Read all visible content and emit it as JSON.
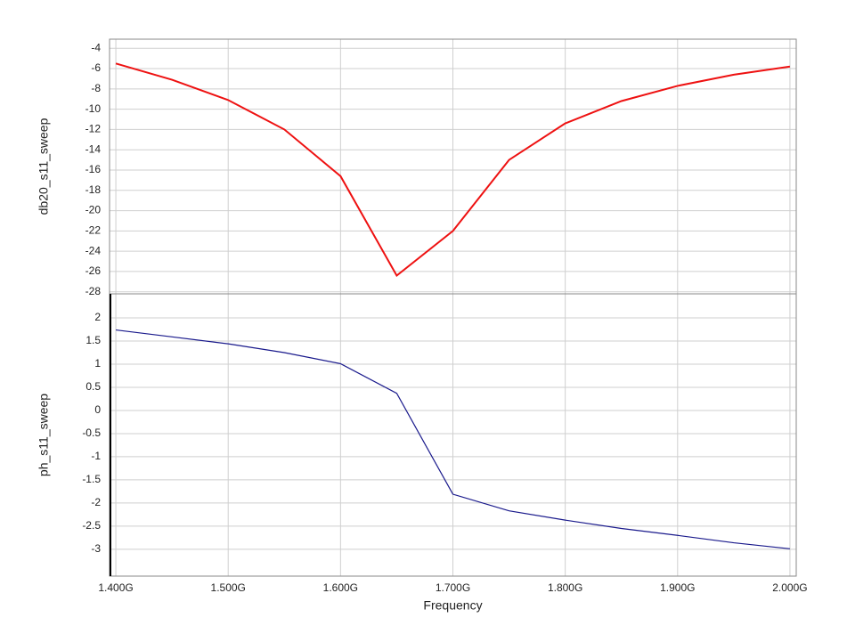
{
  "chart_data": [
    {
      "type": "line",
      "ylabel": "db20_s11_sweep",
      "x": [
        1400000000,
        1450000000,
        1500000000,
        1550000000,
        1600000000,
        1650000000,
        1700000000,
        1750000000,
        1800000000,
        1850000000,
        1900000000,
        1950000000,
        2000000000
      ],
      "series": [
        {
          "color": "#ee1111",
          "values": [
            -5.5,
            -7.1,
            -9.1,
            -12.0,
            -16.6,
            -26.4,
            -22.0,
            -15.0,
            -11.4,
            -9.2,
            -7.7,
            -6.6,
            -5.8
          ]
        }
      ],
      "xlim": [
        1394400000,
        2005600000
      ],
      "xticks": [
        1400000000,
        1500000000,
        1600000000,
        1700000000,
        1800000000,
        1900000000,
        2000000000
      ],
      "ylim": [
        -28.2,
        -3.1
      ],
      "yticks": [
        -4,
        -6,
        -8,
        -10,
        -12,
        -14,
        -16,
        -18,
        -20,
        -22,
        -24,
        -26,
        -28
      ],
      "grid": true
    },
    {
      "type": "line",
      "ylabel": "ph_s11_sweep",
      "xlabel": "Frequency",
      "x": [
        1400000000,
        1450000000,
        1500000000,
        1550000000,
        1600000000,
        1650000000,
        1700000000,
        1750000000,
        1800000000,
        1850000000,
        1900000000,
        1950000000,
        2000000000
      ],
      "series": [
        {
          "color": "#1a1a8c",
          "values": [
            1.74,
            1.59,
            1.44,
            1.25,
            1.01,
            0.37,
            -1.81,
            -2.17,
            -2.37,
            -2.55,
            -2.7,
            -2.86,
            -2.99
          ]
        }
      ],
      "xlim": [
        1394400000,
        2005600000
      ],
      "xticks": [
        {
          "value": 1400000000,
          "label": "1.400G"
        },
        {
          "value": 1500000000,
          "label": "1.500G"
        },
        {
          "value": 1600000000,
          "label": "1.600G"
        },
        {
          "value": 1700000000,
          "label": "1.700G"
        },
        {
          "value": 1800000000,
          "label": "1.800G"
        },
        {
          "value": 1900000000,
          "label": "1.900G"
        },
        {
          "value": 2000000000,
          "label": "2.000G"
        }
      ],
      "ylim": [
        -3.58,
        2.52
      ],
      "yticks": [
        2,
        1.5,
        1,
        0.5,
        0,
        -0.5,
        -1,
        -1.5,
        -2,
        -2.5,
        -3
      ],
      "grid": true
    }
  ]
}
